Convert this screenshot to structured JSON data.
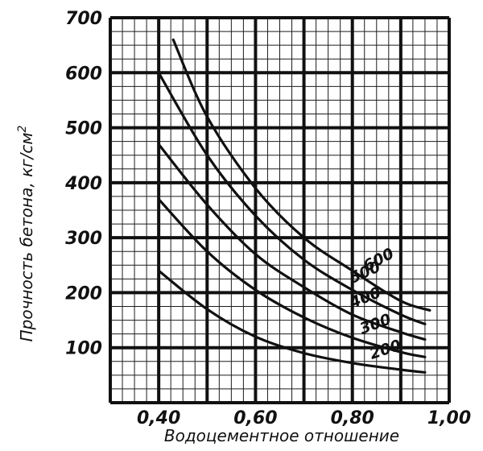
{
  "chart_data": {
    "type": "line",
    "title": "",
    "xlabel": "Водоцементное отношение",
    "ylabel": "Прочность бетона, кг/см",
    "ylabel_superscript": "2",
    "xlim": [
      0.3,
      1.0
    ],
    "ylim": [
      0,
      700
    ],
    "x_ticks": [
      {
        "value": 0.4,
        "label": "0,40"
      },
      {
        "value": 0.6,
        "label": "0,60"
      },
      {
        "value": 0.8,
        "label": "0,80"
      },
      {
        "value": 1.0,
        "label": "1,00"
      }
    ],
    "y_ticks": [
      {
        "value": 100,
        "label": "100"
      },
      {
        "value": 200,
        "label": "200"
      },
      {
        "value": 300,
        "label": "300"
      },
      {
        "value": 400,
        "label": "400"
      },
      {
        "value": 500,
        "label": "500"
      },
      {
        "value": 600,
        "label": "600"
      },
      {
        "value": 700,
        "label": "700"
      }
    ],
    "grid": true,
    "series": [
      {
        "name": "600",
        "label_rotation": -28,
        "points": [
          [
            0.43,
            660
          ],
          [
            0.5,
            520
          ],
          [
            0.6,
            390
          ],
          [
            0.7,
            300
          ],
          [
            0.8,
            240
          ],
          [
            0.9,
            185
          ],
          [
            0.96,
            168
          ]
        ]
      },
      {
        "name": "500",
        "label_rotation": -24,
        "points": [
          [
            0.4,
            600
          ],
          [
            0.5,
            450
          ],
          [
            0.6,
            340
          ],
          [
            0.7,
            260
          ],
          [
            0.8,
            205
          ],
          [
            0.9,
            160
          ],
          [
            0.95,
            143
          ]
        ]
      },
      {
        "name": "400",
        "label_rotation": -22,
        "points": [
          [
            0.4,
            470
          ],
          [
            0.5,
            360
          ],
          [
            0.6,
            270
          ],
          [
            0.7,
            210
          ],
          [
            0.8,
            160
          ],
          [
            0.9,
            128
          ],
          [
            0.95,
            115
          ]
        ]
      },
      {
        "name": "300",
        "label_rotation": -20,
        "points": [
          [
            0.4,
            370
          ],
          [
            0.5,
            275
          ],
          [
            0.6,
            205
          ],
          [
            0.7,
            155
          ],
          [
            0.8,
            118
          ],
          [
            0.9,
            92
          ],
          [
            0.95,
            83
          ]
        ]
      },
      {
        "name": "200",
        "label_rotation": -18,
        "points": [
          [
            0.4,
            240
          ],
          [
            0.5,
            170
          ],
          [
            0.6,
            120
          ],
          [
            0.7,
            90
          ],
          [
            0.8,
            72
          ],
          [
            0.9,
            60
          ],
          [
            0.95,
            55
          ]
        ]
      }
    ]
  }
}
